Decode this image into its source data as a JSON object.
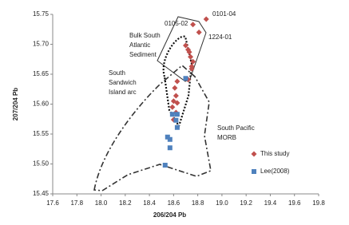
{
  "chart_data": {
    "type": "scatter",
    "x_label": "206/204 Pb",
    "y_label": "207/204 Pb",
    "xlim": [
      17.6,
      19.8
    ],
    "ylim": [
      15.45,
      15.75
    ],
    "xticks": [
      17.6,
      17.8,
      {
        "value": 18,
        "label": "18.0"
      },
      18.2,
      18.4,
      18.6,
      18.8,
      {
        "value": 19,
        "label": "19.0"
      },
      19.2,
      19.4,
      19.6,
      19.8
    ],
    "yticks": [
      15.45,
      {
        "value": 15.5,
        "label": "15.50"
      },
      15.55,
      {
        "value": 15.6,
        "label": "15.60"
      },
      15.65,
      {
        "value": 15.7,
        "label": "15.70"
      },
      15.75
    ],
    "legend_position": "lower right",
    "series": [
      {
        "name": "This study",
        "color": "#c0504d",
        "marker": "diamond",
        "x": [
          18.87,
          18.76,
          18.81,
          18.7,
          18.72,
          18.73,
          18.74,
          18.76,
          18.75,
          18.75,
          18.72,
          18.63,
          18.61,
          18.62,
          18.6,
          18.63,
          18.59,
          18.62,
          18.6
        ],
        "values": [
          15.742,
          15.733,
          15.72,
          15.698,
          15.691,
          15.687,
          15.679,
          15.671,
          15.663,
          15.659,
          15.641,
          15.638,
          15.627,
          15.614,
          15.605,
          15.602,
          15.595,
          15.586,
          15.574
        ]
      },
      {
        "name": "Lee(2008)",
        "color": "#4f81bd",
        "marker": "square",
        "x": [
          18.7,
          18.59,
          18.63,
          18.62,
          18.63,
          18.55,
          18.57,
          18.57,
          18.53
        ],
        "values": [
          15.643,
          15.583,
          15.583,
          15.573,
          15.561,
          15.545,
          15.541,
          15.527,
          15.498
        ]
      }
    ],
    "annotations": [
      {
        "text": [
          "0101-04"
        ]
      },
      {
        "text": [
          "0105-02"
        ]
      },
      {
        "text": [
          "1224-01"
        ]
      },
      {
        "text": [
          "Bulk South",
          "Atlantic",
          "Sediment"
        ]
      },
      {
        "text": [
          "South",
          "Sandwich",
          "Island arc"
        ]
      },
      {
        "text": [
          "South Pacific",
          "MORB"
        ]
      }
    ]
  }
}
